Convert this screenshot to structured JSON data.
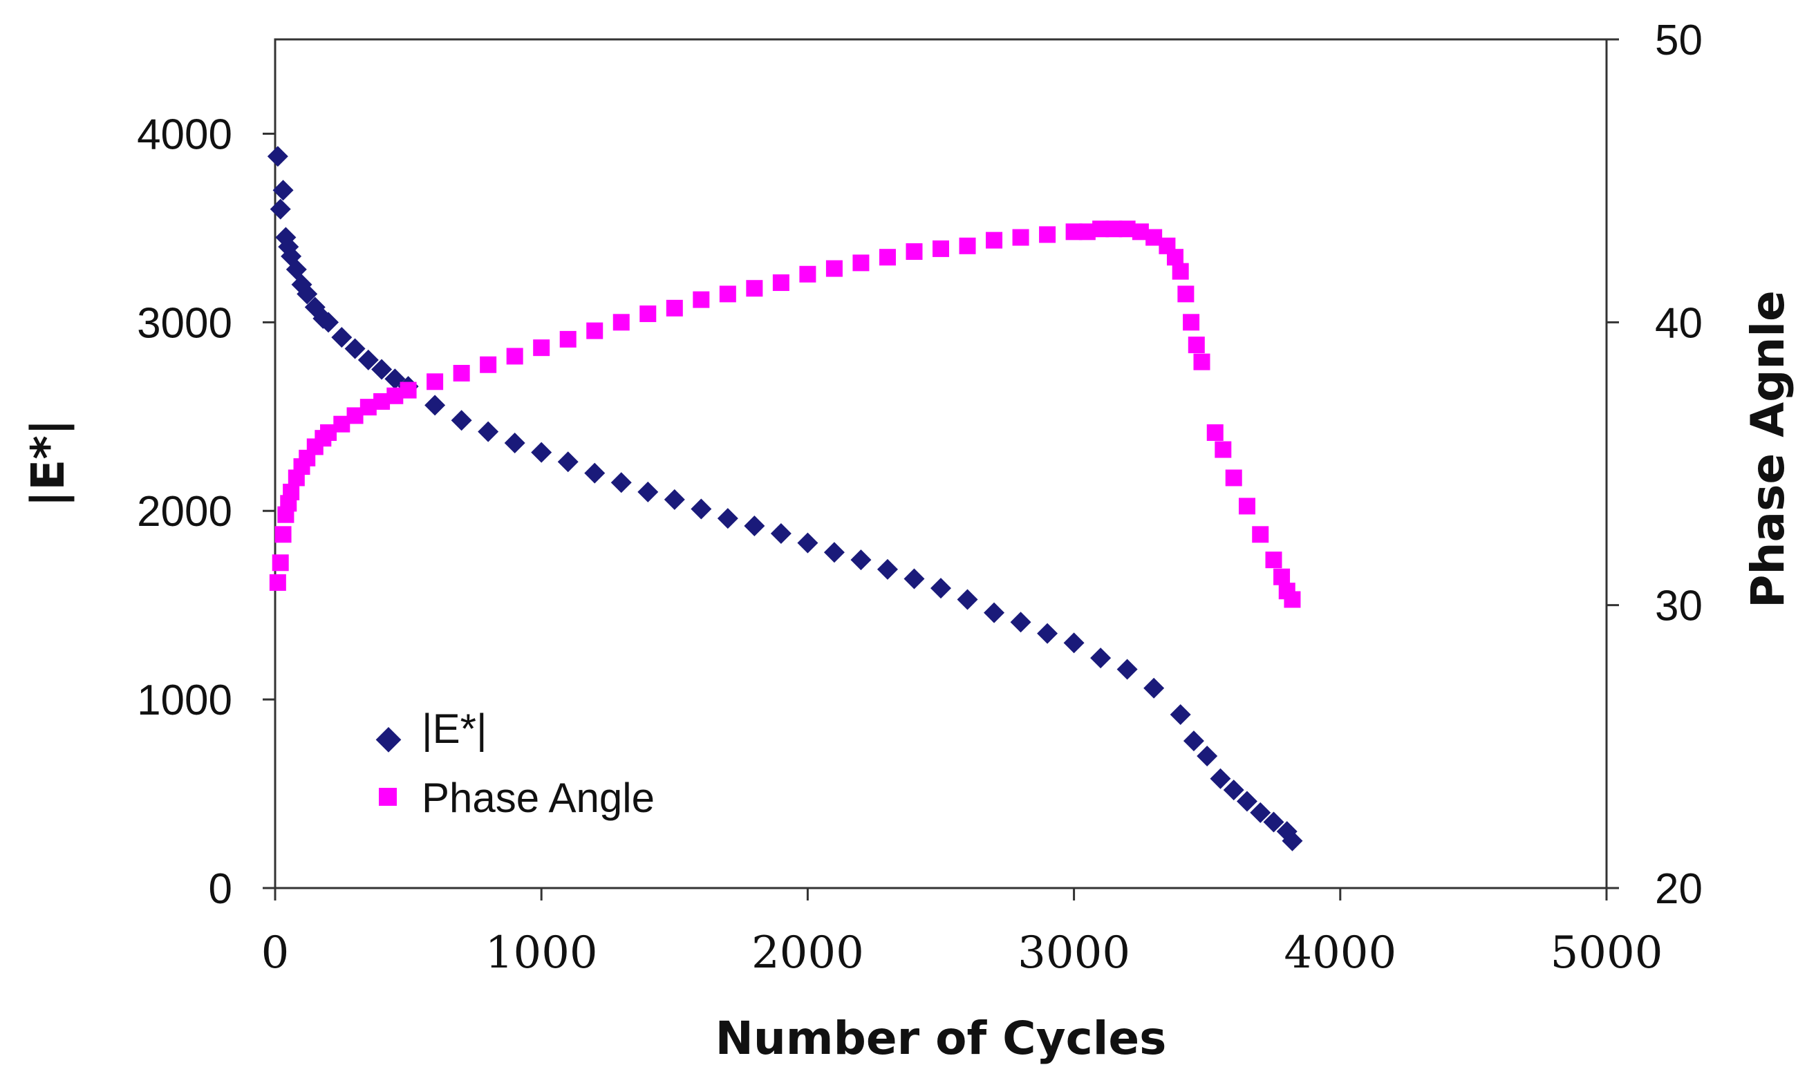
{
  "chart_data": {
    "type": "scatter",
    "title": "",
    "xlabel": "Number of Cycles",
    "ylabel": "|E*|",
    "y2label": "Phase Agnle",
    "xlim": [
      0,
      5000
    ],
    "ylim": [
      0,
      4500
    ],
    "y2lim": [
      20,
      50
    ],
    "x_ticks": [
      "0",
      "1000",
      "2000",
      "3000",
      "4000",
      "5000"
    ],
    "y_ticks": [
      "0",
      "1000",
      "2000",
      "3000",
      "4000"
    ],
    "y2_ticks": [
      "20",
      "30",
      "40",
      "50"
    ],
    "legend_position": "bottom-left",
    "series": [
      {
        "name": "|E*|",
        "axis": "left",
        "marker": "diamond",
        "color": "#1a1a7a",
        "x": [
          10,
          20,
          30,
          40,
          50,
          60,
          80,
          100,
          120,
          150,
          180,
          200,
          250,
          300,
          350,
          400,
          450,
          500,
          600,
          700,
          800,
          900,
          1000,
          1100,
          1200,
          1300,
          1400,
          1500,
          1600,
          1700,
          1800,
          1900,
          2000,
          2100,
          2200,
          2300,
          2400,
          2500,
          2600,
          2700,
          2800,
          2900,
          3000,
          3100,
          3200,
          3300,
          3400,
          3450,
          3500,
          3550,
          3600,
          3650,
          3700,
          3750,
          3800,
          3820
        ],
        "y": [
          3880,
          3600,
          3700,
          3450,
          3400,
          3350,
          3280,
          3200,
          3150,
          3080,
          3020,
          3000,
          2920,
          2860,
          2800,
          2750,
          2700,
          2660,
          2560,
          2480,
          2420,
          2360,
          2310,
          2260,
          2200,
          2150,
          2100,
          2060,
          2010,
          1960,
          1920,
          1880,
          1830,
          1780,
          1740,
          1690,
          1640,
          1590,
          1530,
          1460,
          1410,
          1350,
          1300,
          1220,
          1160,
          1060,
          920,
          780,
          700,
          580,
          520,
          460,
          400,
          350,
          300,
          250
        ]
      },
      {
        "name": "Phase Angle",
        "axis": "right",
        "marker": "square",
        "color": "#ff00ff",
        "x": [
          10,
          20,
          30,
          40,
          50,
          60,
          80,
          100,
          120,
          150,
          180,
          200,
          250,
          300,
          350,
          400,
          450,
          500,
          600,
          700,
          800,
          900,
          1000,
          1100,
          1200,
          1300,
          1400,
          1500,
          1600,
          1700,
          1800,
          1900,
          2000,
          2100,
          2200,
          2300,
          2400,
          2500,
          2600,
          2700,
          2800,
          2900,
          3000,
          3050,
          3100,
          3150,
          3200,
          3250,
          3300,
          3350,
          3380,
          3400,
          3420,
          3440,
          3460,
          3480,
          3530,
          3560,
          3600,
          3650,
          3700,
          3750,
          3780,
          3800,
          3820
        ],
        "y": [
          30.8,
          31.5,
          32.5,
          33.2,
          33.6,
          34.0,
          34.5,
          34.9,
          35.2,
          35.6,
          35.9,
          36.1,
          36.4,
          36.7,
          37.0,
          37.2,
          37.4,
          37.6,
          37.9,
          38.2,
          38.5,
          38.8,
          39.1,
          39.4,
          39.7,
          40.0,
          40.3,
          40.5,
          40.8,
          41.0,
          41.2,
          41.4,
          41.7,
          41.9,
          42.1,
          42.3,
          42.5,
          42.6,
          42.7,
          42.9,
          43.0,
          43.1,
          43.2,
          43.2,
          43.3,
          43.3,
          43.3,
          43.2,
          43.0,
          42.7,
          42.3,
          41.8,
          41.0,
          40.0,
          39.2,
          38.6,
          36.1,
          35.5,
          34.5,
          33.5,
          32.5,
          31.6,
          31.0,
          30.5,
          30.2
        ]
      }
    ]
  }
}
